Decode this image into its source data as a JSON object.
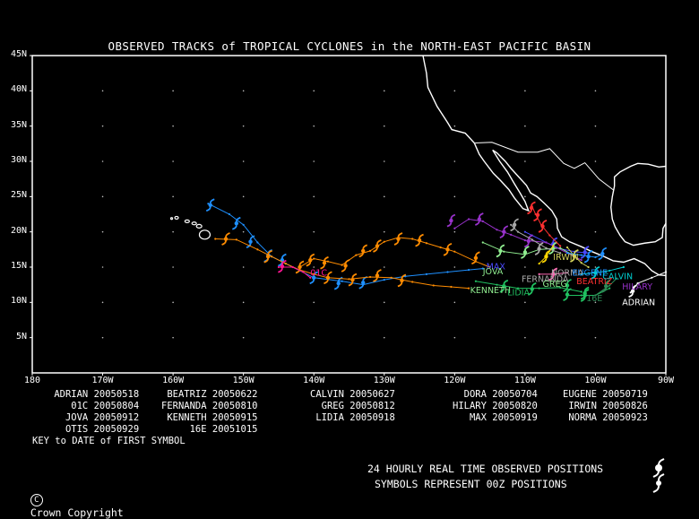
{
  "title": "OBSERVED TRACKS of TROPICAL CYCLONES in the NORTH-EAST PACIFIC BASIN",
  "axes": {
    "lat_labels": [
      "45N",
      "40N",
      "35N",
      "30N",
      "25N",
      "20N",
      "15N",
      "10N",
      "5N"
    ],
    "lon_labels": [
      "180",
      "170W",
      "160W",
      "150W",
      "140W",
      "130W",
      "120W",
      "110W",
      "100W",
      "90W"
    ]
  },
  "key": {
    "rows": [
      [
        [
          "ADRIAN",
          "20050518"
        ],
        [
          "BEATRIZ",
          "20050622"
        ],
        [
          "CALVIN",
          "20050627"
        ],
        [
          "DORA",
          "20050704"
        ],
        [
          "EUGENE",
          "20050719"
        ]
      ],
      [
        [
          "01C",
          "20050804"
        ],
        [
          "FERNANDA",
          "20050810"
        ],
        [
          "GREG",
          "20050812"
        ],
        [
          "HILARY",
          "20050820"
        ],
        [
          "IRWIN",
          "20050826"
        ]
      ],
      [
        [
          "JOVA",
          "20050912"
        ],
        [
          "KENNETH",
          "20050915"
        ],
        [
          "LIDIA",
          "20050918"
        ],
        [
          "MAX",
          "20050919"
        ],
        [
          "NORMA",
          "20050923"
        ]
      ],
      [
        [
          "OTIS",
          "20050929"
        ],
        [
          "16E",
          "20051015"
        ]
      ]
    ],
    "caption": "KEY to DATE of FIRST SYMBOL"
  },
  "footer": {
    "copyright": "Crown Copyright",
    "line1": "24 HOURLY REAL TIME OBSERVED POSITIONS",
    "line2": "SYMBOLS REPRESENT 00Z POSITIONS"
  },
  "chart_data": {
    "type": "map",
    "xlim": [
      -180,
      -90
    ],
    "ylim": [
      0,
      45
    ],
    "tracks": [
      {
        "name": "JOVA",
        "color": "#1e90ff",
        "points": [
          [
            -155,
            24
          ],
          [
            -152,
            22.5
          ],
          [
            -150,
            21
          ],
          [
            -148,
            18.5
          ],
          [
            -146,
            16.5
          ],
          [
            -144,
            15.5
          ],
          [
            -142,
            14.5
          ],
          [
            -140,
            13.5
          ],
          [
            -136,
            13
          ],
          [
            -133,
            12.5
          ],
          [
            -130,
            13.2
          ],
          [
            -127,
            13.7
          ],
          [
            -124,
            14
          ],
          [
            -121,
            14.3
          ],
          [
            -118,
            14.6
          ],
          [
            -116,
            14.8
          ]
        ],
        "symbols": [
          [
            -154.7,
            23.8
          ],
          [
            -151,
            21.2
          ],
          [
            -149,
            18.6
          ],
          [
            -146.5,
            16.6
          ],
          [
            -144.5,
            16
          ],
          [
            -140,
            13.5
          ],
          [
            -136.5,
            12.7
          ],
          [
            -133,
            12.8
          ]
        ]
      },
      {
        "name": "KENNETH",
        "color": "#ff8c00",
        "points": [
          [
            -154,
            19
          ],
          [
            -151,
            18.9
          ],
          [
            -148,
            17.5
          ],
          [
            -146,
            16.5
          ],
          [
            -144,
            15.5
          ],
          [
            -142,
            14.6
          ],
          [
            -140,
            14
          ],
          [
            -138,
            13.5
          ],
          [
            -135,
            13.3
          ],
          [
            -132,
            13.6
          ],
          [
            -129,
            13.5
          ],
          [
            -126,
            12.9
          ],
          [
            -123,
            12.4
          ],
          [
            -120.5,
            12.2
          ],
          [
            -118,
            12
          ]
        ],
        "symbols": [
          [
            -152.5,
            19
          ],
          [
            -146.5,
            16.5
          ],
          [
            -142,
            15
          ],
          [
            -138,
            13.5
          ],
          [
            -134.5,
            13.2
          ],
          [
            -131,
            13.8
          ],
          [
            -127.5,
            13.1
          ]
        ]
      },
      {
        "name": "KENNETH_B",
        "color": "#ff8c00",
        "points": [
          [
            -142,
            15
          ],
          [
            -140,
            16.2
          ],
          [
            -138,
            15.8
          ],
          [
            -136,
            15.3
          ],
          [
            -134,
            16.7
          ],
          [
            -132,
            17.3
          ],
          [
            -130,
            18.6
          ],
          [
            -128,
            19.2
          ],
          [
            -126,
            19
          ],
          [
            -124,
            18.4
          ],
          [
            -122,
            17.8
          ],
          [
            -120,
            17.2
          ],
          [
            -117,
            15.8
          ],
          [
            -115,
            15
          ]
        ],
        "symbols": [
          [
            -140.5,
            16
          ],
          [
            -138.5,
            15.6
          ],
          [
            -135.5,
            15.2
          ],
          [
            -133,
            17.3
          ],
          [
            -131,
            18
          ],
          [
            -128,
            19
          ],
          [
            -125,
            18.8
          ],
          [
            -121,
            17.5
          ],
          [
            -117,
            16.3
          ]
        ]
      },
      {
        "name": "01C",
        "color": "#ff1493",
        "points": [
          [
            -145,
            15
          ],
          [
            -143,
            15
          ],
          [
            -141.5,
            14.3
          ],
          [
            -140.5,
            13.5
          ]
        ],
        "symbols": [
          [
            -144.5,
            15.1
          ]
        ]
      },
      {
        "name": "MAX",
        "color": "#4a4aff",
        "points": [
          [
            -110,
            20
          ],
          [
            -109,
            19.5
          ],
          [
            -107,
            18.5
          ],
          [
            -105,
            17.6
          ],
          [
            -103,
            17.2
          ],
          [
            -101,
            17
          ]
        ],
        "symbols": [
          [
            -106,
            18.3
          ],
          [
            -101.5,
            17.1
          ]
        ]
      },
      {
        "name": "KENNETH_LABEL",
        "color": "#20c060",
        "points": [
          [
            -117,
            13
          ],
          [
            -114,
            12.5
          ],
          [
            -111,
            12
          ],
          [
            -108,
            12
          ],
          [
            -105,
            12.1
          ],
          [
            -102,
            11.5
          ]
        ],
        "symbols": [
          [
            -113,
            12.3
          ],
          [
            -109,
            11.9
          ],
          [
            -104,
            12.4
          ],
          [
            -101.5,
            11.3
          ]
        ]
      },
      {
        "name": "GREG",
        "color": "#90ee90",
        "points": [
          [
            -116,
            18.5
          ],
          [
            -113,
            17.2
          ],
          [
            -110,
            16.8
          ],
          [
            -108,
            17.5
          ],
          [
            -105,
            17.7
          ],
          [
            -103,
            16.6
          ]
        ],
        "symbols": [
          [
            -113.5,
            17.3
          ],
          [
            -110,
            17.1
          ],
          [
            -106,
            17.7
          ]
        ]
      },
      {
        "name": "HILARY",
        "color": "#9932cc",
        "points": [
          [
            -120,
            20.5
          ],
          [
            -118,
            21.8
          ],
          [
            -116,
            21.5
          ],
          [
            -114,
            20.3
          ],
          [
            -112,
            19.6
          ],
          [
            -110,
            18.8
          ],
          [
            -107,
            18.5
          ],
          [
            -104,
            17
          ],
          [
            -102,
            16
          ]
        ],
        "symbols": [
          [
            -120.5,
            21.6
          ],
          [
            -116.5,
            21.8
          ],
          [
            -113,
            20
          ],
          [
            -109.5,
            18.7
          ]
        ]
      },
      {
        "name": "IRWIN",
        "color": "#d2d25a",
        "points": [
          [
            -104,
            17.8
          ],
          [
            -103,
            16.6
          ],
          [
            -102,
            15.6
          ],
          [
            -101,
            15
          ]
        ],
        "symbols": [
          [
            -103,
            16.6
          ]
        ]
      },
      {
        "name": "DORA",
        "color": "#aaaaaa",
        "points": [
          [
            -112,
            21
          ],
          [
            -111,
            20
          ],
          [
            -109,
            18.9
          ],
          [
            -107,
            17.7
          ],
          [
            -105,
            17
          ]
        ],
        "symbols": [
          [
            -111.5,
            21
          ],
          [
            -108,
            17.6
          ]
        ]
      },
      {
        "name": "BEATRIZ",
        "color": "#ff3030",
        "points": [
          [
            -109,
            23.6
          ],
          [
            -108.5,
            22.5
          ],
          [
            -107.7,
            21
          ],
          [
            -106.5,
            19.5
          ],
          [
            -105,
            18
          ]
        ],
        "symbols": [
          [
            -109.1,
            23.4
          ],
          [
            -108.2,
            22.4
          ],
          [
            -107.5,
            20.8
          ]
        ]
      },
      {
        "name": "LIDIA",
        "color": "#20c060",
        "points": [
          [
            -104,
            11
          ],
          [
            -102,
            11
          ],
          [
            -100,
            11
          ],
          [
            -98,
            12
          ]
        ],
        "symbols": [
          [
            -104,
            11.1
          ],
          [
            -101.5,
            11
          ]
        ]
      },
      {
        "name": "16E",
        "color": "#2e8b57",
        "points": [
          [
            -100,
            11
          ],
          [
            -98,
            12.4
          ],
          [
            -97,
            13.4
          ]
        ],
        "symbols": [
          [
            -98.5,
            12.3
          ]
        ]
      },
      {
        "name": "ADRIAN",
        "color": "#ffffff",
        "points": [
          [
            -90,
            14.3
          ],
          [
            -92,
            13.5
          ],
          [
            -94,
            12.7
          ],
          [
            -95,
            11.4
          ]
        ],
        "symbols": [
          [
            -94.7,
            11.6
          ]
        ]
      },
      {
        "name": "EUGENE",
        "color": "#1e90ff",
        "points": [
          [
            -104,
            17
          ],
          [
            -102,
            16.7
          ],
          [
            -100,
            16.4
          ],
          [
            -99,
            16.8
          ]
        ],
        "symbols": [
          [
            -101,
            16.5
          ],
          [
            -99,
            16.9
          ]
        ]
      },
      {
        "name": "CALVIN",
        "color": "#00ced1",
        "points": [
          [
            -102,
            14
          ],
          [
            -100,
            14.2
          ],
          [
            -98,
            14.5
          ],
          [
            -96,
            15
          ]
        ],
        "symbols": [
          [
            -100,
            14.2
          ]
        ]
      },
      {
        "name": "NORMA",
        "color": "#ff69b4",
        "points": [
          [
            -108,
            14
          ],
          [
            -106,
            14
          ],
          [
            -104,
            14.2
          ]
        ],
        "symbols": [
          [
            -106,
            14
          ]
        ]
      },
      {
        "name": "OTIS",
        "color": "#ffd700",
        "points": [
          [
            -108,
            15.5
          ],
          [
            -107,
            16.5
          ],
          [
            -106,
            18
          ]
        ],
        "symbols": [
          [
            -107,
            16.5
          ]
        ]
      }
    ],
    "labels": [
      {
        "text": "01C",
        "lon": -140.5,
        "lat": 13.8,
        "color": "#ff1493"
      },
      {
        "text": "FERNANDA",
        "lon": -110.5,
        "lat": 12.9,
        "color": "#aaaaaa"
      },
      {
        "text": "KENNETH",
        "lon": -117.8,
        "lat": 11.3,
        "color": "#90ee90"
      },
      {
        "text": "LIDIA",
        "lon": -112.5,
        "lat": 11,
        "color": "#20c060"
      },
      {
        "text": "GREG",
        "lon": -107.5,
        "lat": 12.2,
        "color": "#90ee90"
      },
      {
        "text": "BEATRIZ",
        "lon": -102.7,
        "lat": 12.6,
        "color": "#ff3030"
      },
      {
        "text": "HILARY",
        "lon": -96.2,
        "lat": 11.8,
        "color": "#9932cc"
      },
      {
        "text": "16E",
        "lon": -101.3,
        "lat": 10.2,
        "color": "#2e8b57"
      },
      {
        "text": "ADRIAN",
        "lon": -96.2,
        "lat": 9.6,
        "color": "#ffffff"
      },
      {
        "text": "NORMA",
        "lon": -106.3,
        "lat": 13.8,
        "color": "#aaaaaa"
      },
      {
        "text": "EUGENE",
        "lon": -103.3,
        "lat": 13.8,
        "color": "#1e90ff"
      },
      {
        "text": "CALVIN",
        "lon": -99,
        "lat": 13.3,
        "color": "#00ced1"
      },
      {
        "text": "IRWIN",
        "lon": -106,
        "lat": 16,
        "color": "#d2d25a"
      },
      {
        "text": "MAX",
        "lon": -115.5,
        "lat": 14.7,
        "color": "#4a4aff"
      },
      {
        "text": "JOVA",
        "lon": -116,
        "lat": 14,
        "color": "#90ee90"
      }
    ]
  }
}
